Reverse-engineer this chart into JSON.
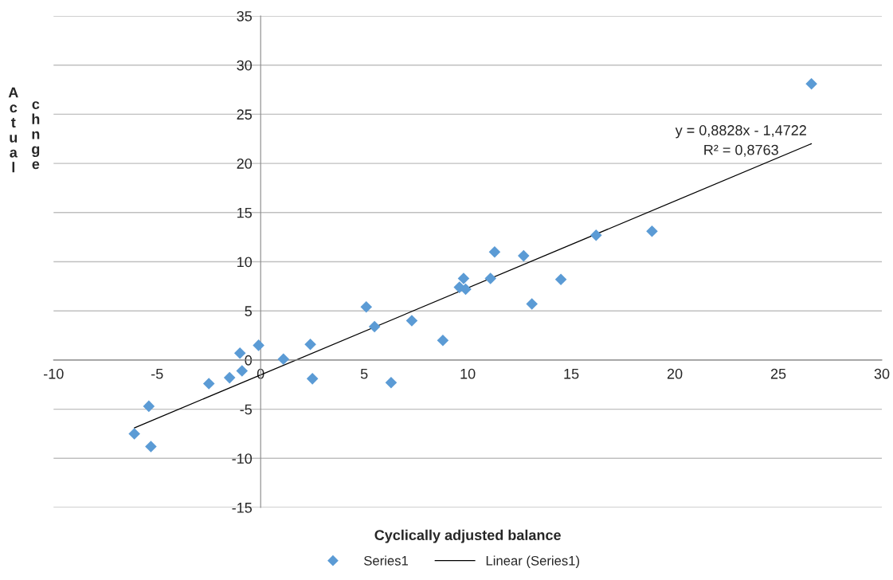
{
  "chart_data": {
    "type": "scatter",
    "xlabel": "Cyclically adjusted balance",
    "ylabel": "Actual chnge",
    "annotations": [
      "y = 0,8828x - 1,4722",
      "R² = 0,8763"
    ],
    "series": [
      {
        "name": "Series1",
        "color": "#5b9bd5",
        "marker": "diamond",
        "x": [
          -6.1,
          -5.3,
          -5.4,
          -2.5,
          -1.5,
          -0.9,
          -1.0,
          -0.1,
          1.1,
          2.4,
          2.5,
          5.1,
          5.5,
          7.3,
          6.3,
          8.8,
          9.6,
          9.9,
          9.8,
          11.1,
          11.3,
          12.7,
          13.1,
          14.5,
          16.2,
          18.9,
          26.6
        ],
        "values": [
          -7.5,
          -8.8,
          -4.7,
          -2.4,
          -1.8,
          -1.1,
          0.7,
          1.5,
          0.1,
          1.6,
          -1.9,
          5.4,
          3.4,
          4.0,
          -2.3,
          2.0,
          7.4,
          7.2,
          8.3,
          8.3,
          11.0,
          10.6,
          5.7,
          8.2,
          12.7,
          13.1,
          28.1
        ]
      },
      {
        "name": "Linear (Series1)",
        "type": "line",
        "color": "#000000",
        "marker": "none",
        "line_style": "solid",
        "x": [
          -6.1,
          26.6
        ],
        "values": [
          -6.9,
          22.0
        ]
      }
    ],
    "xlim": [
      -10,
      30
    ],
    "xticks": [
      -10,
      -5,
      0,
      5,
      10,
      15,
      20,
      25,
      30
    ],
    "ylim": [
      -15,
      35
    ],
    "yticks": [
      -15,
      -10,
      -5,
      0,
      5,
      10,
      15,
      20,
      25,
      30,
      35
    ],
    "grid": "y",
    "legend": "bottom"
  }
}
